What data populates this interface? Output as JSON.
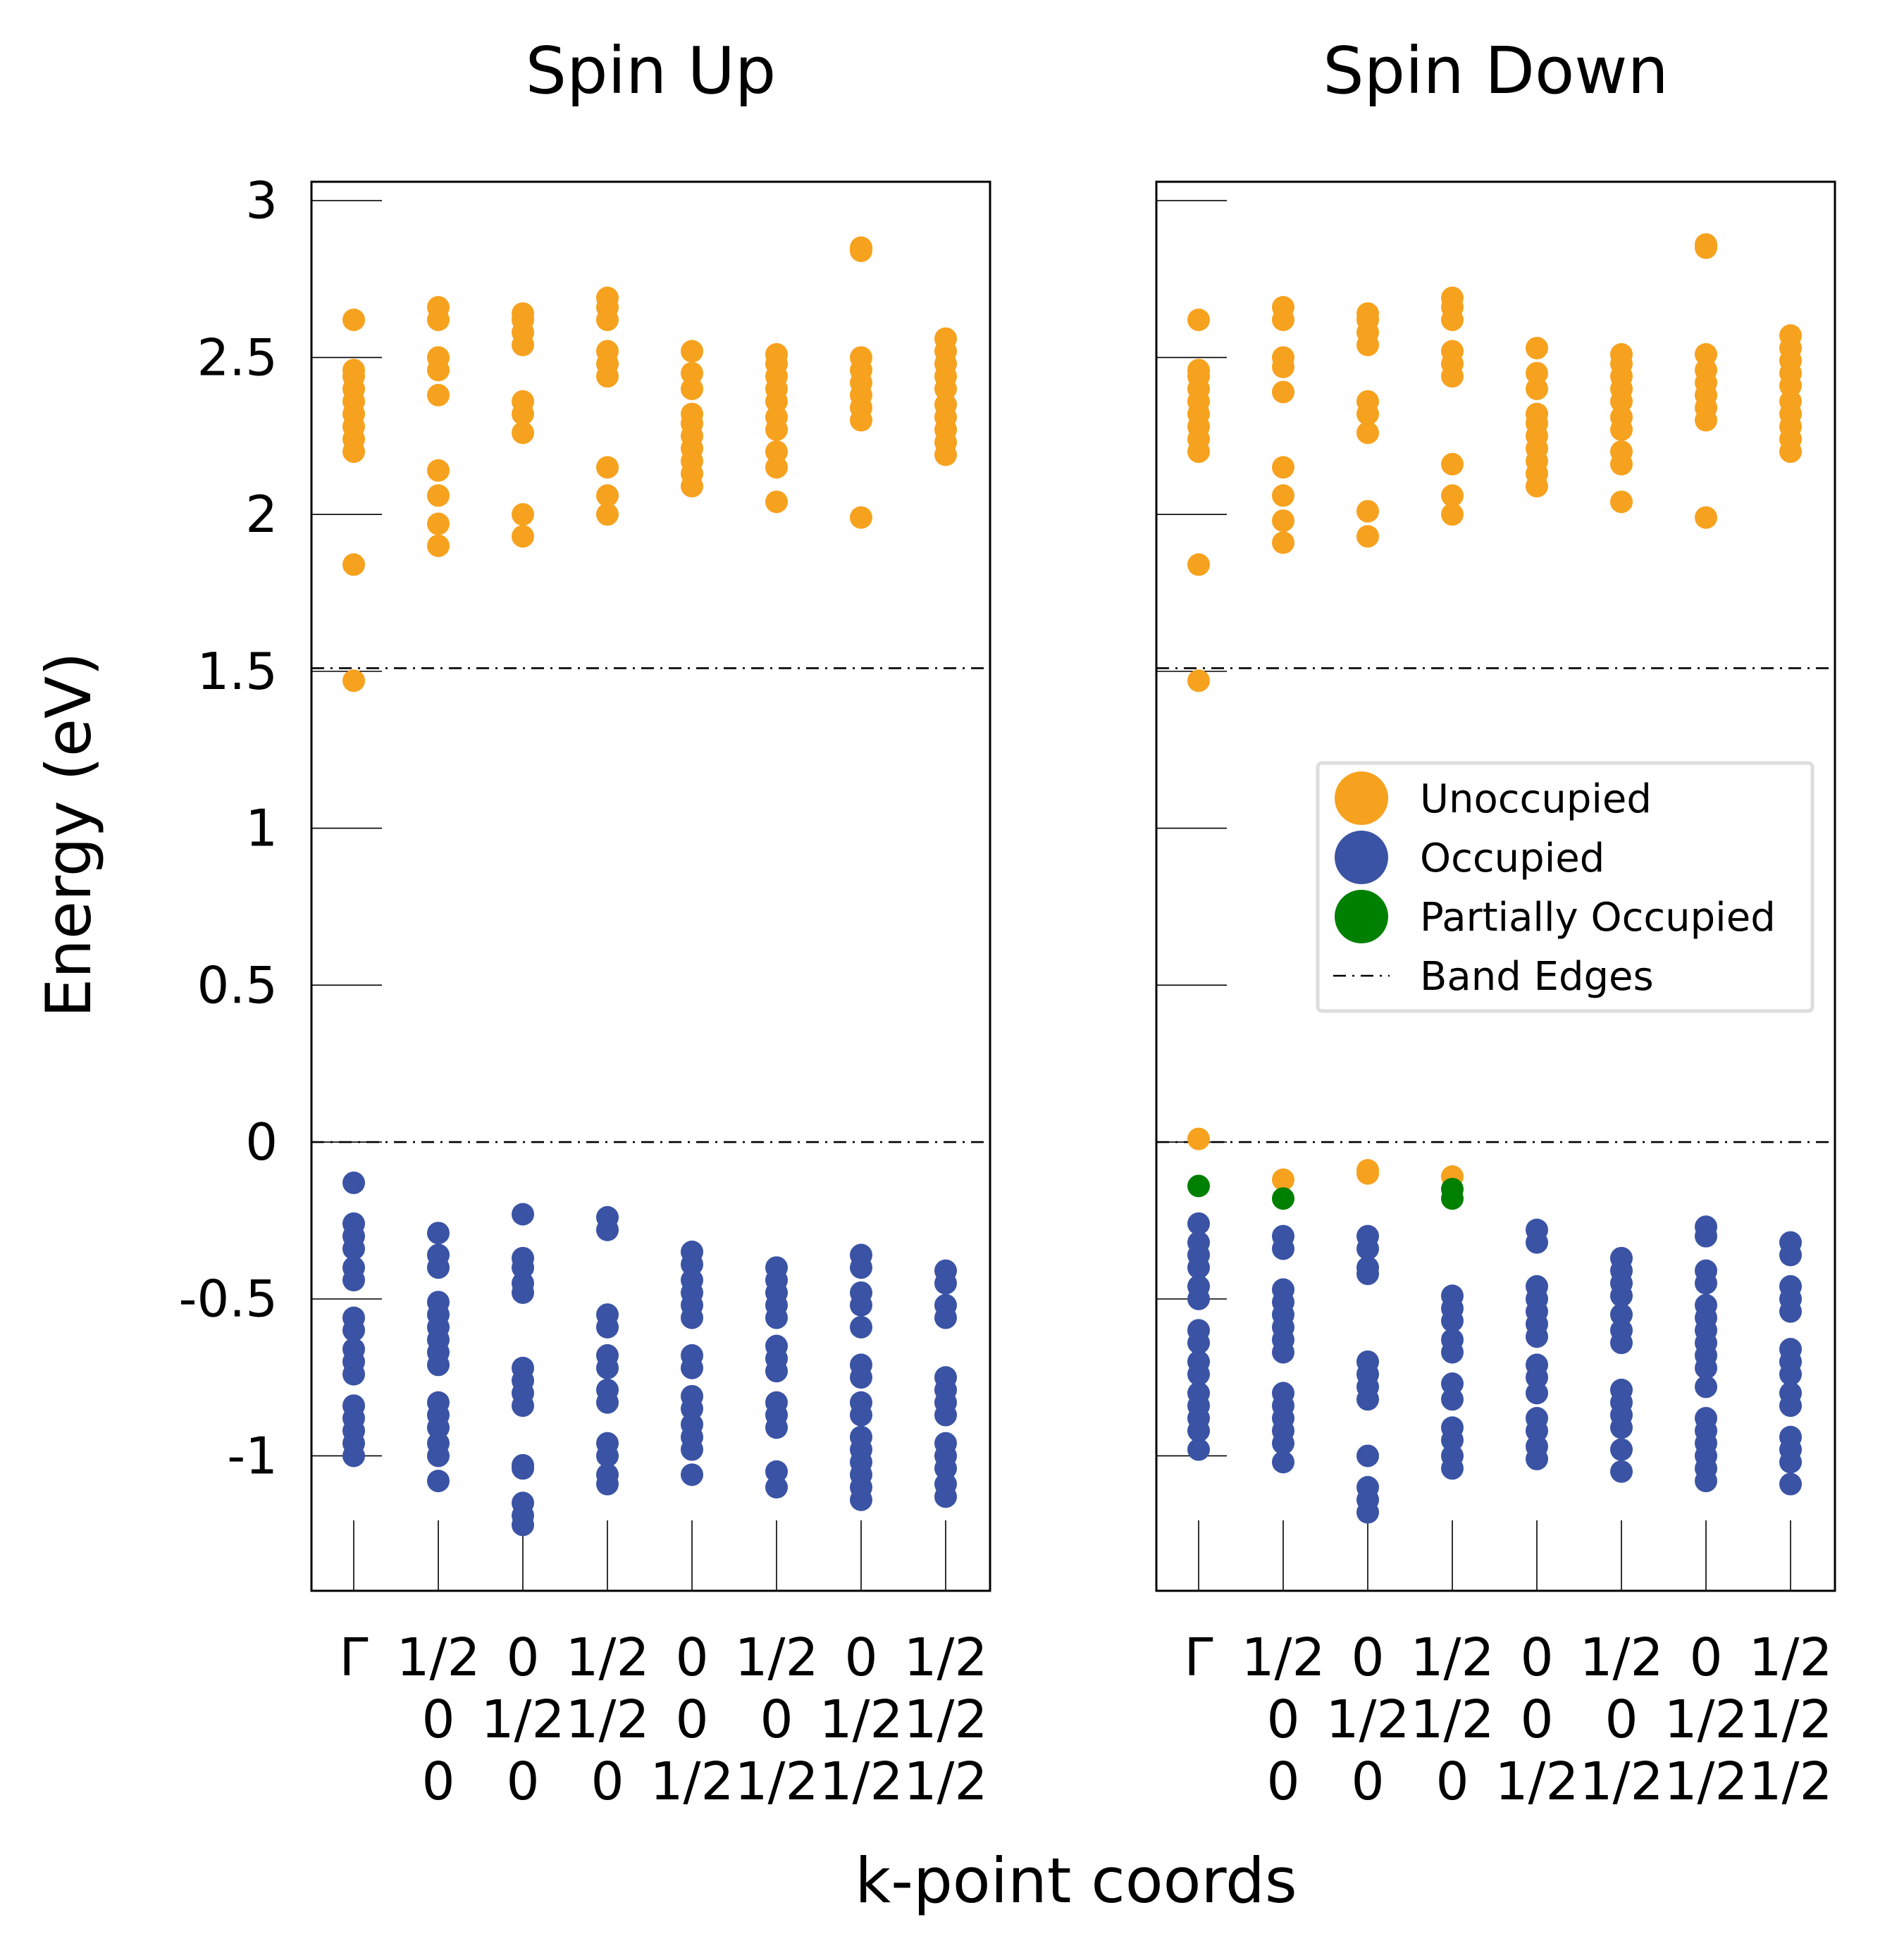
{
  "chart_data": {
    "type": "scatter",
    "ylabel": "Energy (eV)",
    "xlabel": "k-point coords",
    "ylim": [
      -1.43,
      3.06
    ],
    "yticks": [
      {
        "value": 3,
        "label": "3"
      },
      {
        "value": 2.5,
        "label": "2.5"
      },
      {
        "value": 2,
        "label": "2"
      },
      {
        "value": 1.5,
        "label": "1.5"
      },
      {
        "value": 1,
        "label": "1"
      },
      {
        "value": 0.5,
        "label": "0.5"
      },
      {
        "value": 0,
        "label": "0"
      },
      {
        "value": -0.5,
        "label": "-0.5"
      },
      {
        "value": -1,
        "label": "-1"
      }
    ],
    "kpoints": [
      {
        "lines": [
          "Γ"
        ]
      },
      {
        "lines": [
          "1/2",
          "0",
          "0"
        ]
      },
      {
        "lines": [
          "0",
          "1/2",
          "0"
        ]
      },
      {
        "lines": [
          "1/2",
          "1/2",
          "0"
        ]
      },
      {
        "lines": [
          "0",
          "0",
          "1/2"
        ]
      },
      {
        "lines": [
          "1/2",
          "0",
          "1/2"
        ]
      },
      {
        "lines": [
          "0",
          "1/2",
          "1/2"
        ]
      },
      {
        "lines": [
          "1/2",
          "1/2",
          "1/2"
        ]
      }
    ],
    "band_edges": [
      1.51,
      0.0
    ],
    "colors": {
      "unoccupied": "#F6A21E",
      "occupied": "#3A53A4",
      "partial": "#008000"
    },
    "legend": {
      "placement": "right, middle of Spin Down panel",
      "entries": [
        {
          "label": "Unoccupied",
          "key": "unoccupied",
          "marker": "dot"
        },
        {
          "label": "Occupied",
          "key": "occupied",
          "marker": "dot"
        },
        {
          "label": "Partially Occupied",
          "key": "partial",
          "marker": "dot"
        },
        {
          "label": "Band Edges",
          "key": "edge",
          "marker": "dashdot"
        }
      ]
    },
    "panels": [
      {
        "title": "Spin Up",
        "unoccupied": [
          [
            1.47,
            1.84,
            2.2,
            2.24,
            2.28,
            2.32,
            2.36,
            2.4,
            2.44,
            2.46,
            2.62
          ],
          [
            1.9,
            1.97,
            2.06,
            2.14,
            2.38,
            2.46,
            2.5,
            2.62,
            2.66
          ],
          [
            1.93,
            2.0,
            2.26,
            2.32,
            2.36,
            2.54,
            2.58,
            2.62,
            2.64
          ],
          [
            2.0,
            2.06,
            2.15,
            2.44,
            2.48,
            2.52,
            2.62,
            2.66,
            2.69
          ],
          [
            2.09,
            2.13,
            2.17,
            2.21,
            2.25,
            2.29,
            2.32,
            2.4,
            2.45,
            2.52
          ],
          [
            2.04,
            2.15,
            2.2,
            2.27,
            2.31,
            2.36,
            2.4,
            2.44,
            2.48,
            2.51
          ],
          [
            1.99,
            2.3,
            2.34,
            2.38,
            2.42,
            2.46,
            2.5,
            2.84,
            2.85
          ],
          [
            2.19,
            2.23,
            2.27,
            2.31,
            2.35,
            2.4,
            2.44,
            2.48,
            2.52,
            2.56
          ]
        ],
        "occupied": [
          [
            -0.13,
            -0.26,
            -0.3,
            -0.34,
            -0.4,
            -0.44,
            -0.56,
            -0.6,
            -0.66,
            -0.7,
            -0.74,
            -0.84,
            -0.88,
            -0.92,
            -0.96,
            -1.0
          ],
          [
            -0.29,
            -0.36,
            -0.4,
            -0.51,
            -0.55,
            -0.59,
            -0.63,
            -0.67,
            -0.71,
            -0.83,
            -0.87,
            -0.91,
            -0.96,
            -1.0,
            -1.08
          ],
          [
            -0.23,
            -0.37,
            -0.4,
            -0.45,
            -0.48,
            -0.72,
            -0.76,
            -0.8,
            -0.84,
            -1.03,
            -1.04,
            -1.15,
            -1.19,
            -1.22
          ],
          [
            -0.24,
            -0.28,
            -0.55,
            -0.59,
            -0.68,
            -0.72,
            -0.79,
            -0.83,
            -0.96,
            -1.0,
            -1.06,
            -1.09
          ],
          [
            -0.35,
            -0.39,
            -0.44,
            -0.48,
            -0.52,
            -0.56,
            -0.68,
            -0.72,
            -0.81,
            -0.85,
            -0.9,
            -0.94,
            -0.98,
            -1.06
          ],
          [
            -0.4,
            -0.44,
            -0.48,
            -0.52,
            -0.56,
            -0.65,
            -0.69,
            -0.73,
            -0.83,
            -0.87,
            -0.91,
            -1.05,
            -1.1
          ],
          [
            -0.36,
            -0.4,
            -0.48,
            -0.52,
            -0.59,
            -0.71,
            -0.75,
            -0.83,
            -0.87,
            -0.94,
            -0.98,
            -1.02,
            -1.06,
            -1.1,
            -1.14
          ],
          [
            -0.41,
            -0.45,
            -0.52,
            -0.56,
            -0.75,
            -0.79,
            -0.83,
            -0.87,
            -0.96,
            -1.0,
            -1.04,
            -1.09,
            -1.13
          ]
        ],
        "partial": [
          [],
          [],
          [],
          [],
          [],
          [],
          [],
          []
        ]
      },
      {
        "title": "Spin Down",
        "unoccupied": [
          [
            0.01,
            1.47,
            1.84,
            2.2,
            2.24,
            2.28,
            2.32,
            2.36,
            2.4,
            2.44,
            2.46,
            2.62
          ],
          [
            -0.12,
            1.91,
            1.98,
            2.06,
            2.15,
            2.39,
            2.47,
            2.5,
            2.62,
            2.66
          ],
          [
            -0.09,
            -0.1,
            1.93,
            2.01,
            2.26,
            2.32,
            2.36,
            2.54,
            2.58,
            2.62,
            2.64
          ],
          [
            -0.11,
            2.0,
            2.06,
            2.16,
            2.44,
            2.48,
            2.52,
            2.62,
            2.66,
            2.69
          ],
          [
            2.09,
            2.13,
            2.17,
            2.21,
            2.25,
            2.29,
            2.32,
            2.4,
            2.45,
            2.53
          ],
          [
            2.04,
            2.16,
            2.2,
            2.27,
            2.31,
            2.36,
            2.4,
            2.44,
            2.48,
            2.51
          ],
          [
            1.99,
            2.3,
            2.34,
            2.38,
            2.42,
            2.46,
            2.51,
            2.85,
            2.86
          ],
          [
            2.2,
            2.24,
            2.28,
            2.32,
            2.36,
            2.41,
            2.45,
            2.49,
            2.53,
            2.57
          ]
        ],
        "occupied": [
          [
            -0.26,
            -0.32,
            -0.36,
            -0.4,
            -0.46,
            -0.5,
            -0.6,
            -0.64,
            -0.7,
            -0.74,
            -0.8,
            -0.84,
            -0.88,
            -0.92,
            -0.98
          ],
          [
            -0.3,
            -0.34,
            -0.47,
            -0.51,
            -0.55,
            -0.59,
            -0.63,
            -0.67,
            -0.8,
            -0.84,
            -0.88,
            -0.92,
            -0.96,
            -1.02
          ],
          [
            -0.3,
            -0.34,
            -0.4,
            -0.42,
            -0.7,
            -0.74,
            -0.78,
            -0.82,
            -1.0,
            -1.1,
            -1.14,
            -1.18
          ],
          [
            -0.49,
            -0.53,
            -0.57,
            -0.63,
            -0.67,
            -0.77,
            -0.82,
            -0.91,
            -0.95,
            -1.0,
            -1.04
          ],
          [
            -0.28,
            -0.32,
            -0.46,
            -0.5,
            -0.54,
            -0.58,
            -0.62,
            -0.71,
            -0.75,
            -0.8,
            -0.88,
            -0.92,
            -0.97,
            -1.01
          ],
          [
            -0.37,
            -0.41,
            -0.45,
            -0.49,
            -0.55,
            -0.6,
            -0.64,
            -0.79,
            -0.83,
            -0.87,
            -0.91,
            -0.98,
            -1.05
          ],
          [
            -0.27,
            -0.3,
            -0.41,
            -0.45,
            -0.52,
            -0.56,
            -0.6,
            -0.64,
            -0.68,
            -0.72,
            -0.78,
            -0.88,
            -0.92,
            -0.96,
            -1.0,
            -1.04,
            -1.08
          ],
          [
            -0.32,
            -0.36,
            -0.46,
            -0.5,
            -0.54,
            -0.66,
            -0.7,
            -0.74,
            -0.8,
            -0.84,
            -0.94,
            -0.98,
            -1.02,
            -1.09
          ]
        ],
        "partial": [
          [
            -0.14
          ],
          [
            -0.18
          ],
          [],
          [
            -0.15,
            -0.18
          ],
          [],
          [],
          [],
          []
        ]
      }
    ]
  }
}
